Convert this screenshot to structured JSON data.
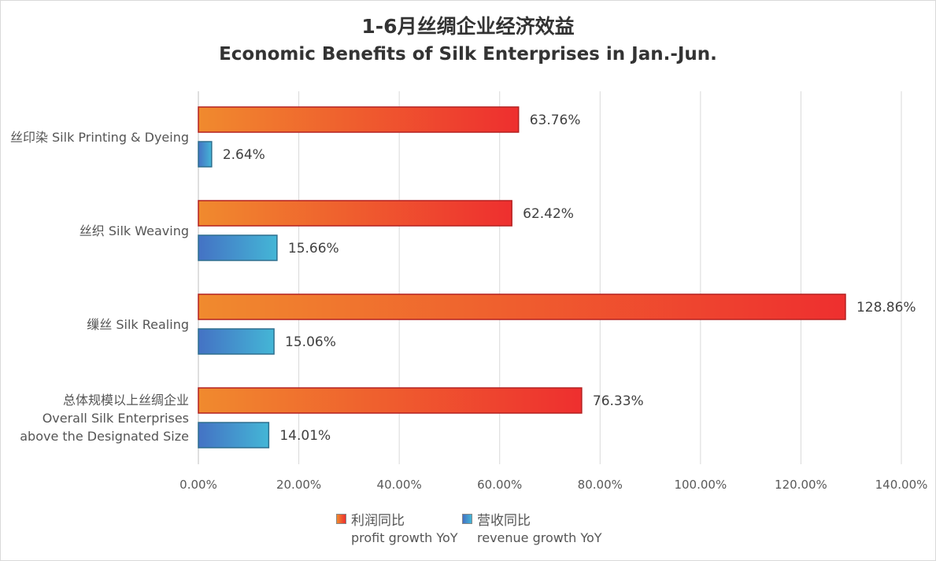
{
  "chart_data": {
    "type": "bar",
    "orientation": "horizontal",
    "title": "1-6月丝绸企业经济效益",
    "subtitle": "Economic Benefits of Silk Enterprises in Jan.-Jun.",
    "categories": [
      [
        "丝印染 Silk Printing & Dyeing"
      ],
      [
        "丝织 Silk Weaving"
      ],
      [
        "缫丝 Silk Realing"
      ],
      [
        "总体规模以上丝绸企业",
        "Overall Silk Enterprises",
        "above the Designated Size"
      ]
    ],
    "series": [
      {
        "name": "利润同比",
        "name_en": "profit growth YoY",
        "values": [
          63.76,
          62.42,
          128.86,
          76.33
        ],
        "labels": [
          "63.76%",
          "62.42%",
          "128.86%",
          "76.33%"
        ],
        "gradient": [
          "#f08a2e",
          "#ee2f2f"
        ],
        "edge": "#b42020"
      },
      {
        "name": "营收同比",
        "name_en": "revenue growth YoY",
        "values": [
          2.64,
          15.66,
          15.06,
          14.01
        ],
        "labels": [
          "2.64%",
          "15.66%",
          "15.06%",
          "14.01%"
        ],
        "gradient": [
          "#4472c4",
          "#44b6d6"
        ],
        "edge": "#2e6f8e"
      }
    ],
    "xlim": [
      0,
      140
    ],
    "xticks": [
      "0.00%",
      "20.00%",
      "40.00%",
      "60.00%",
      "80.00%",
      "100.00%",
      "120.00%",
      "140.00%"
    ],
    "grid": true,
    "legend_position": "bottom"
  }
}
